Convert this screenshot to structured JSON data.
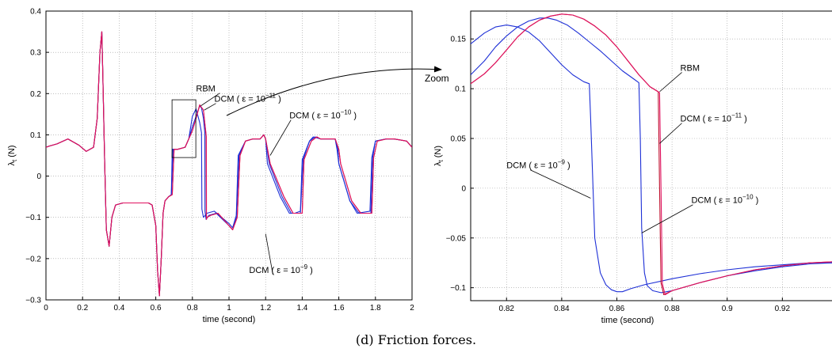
{
  "caption": "(d) Friction forces.",
  "zoom_label": "Zoom",
  "colors": {
    "rbm": "#e0115f",
    "dcm11": "#c0102e",
    "dcm10": "#1d2fd6",
    "dcm9": "#1d2fd6",
    "axis": "#000000",
    "grid": "#9a9a9a"
  },
  "chart_data": [
    {
      "type": "line",
      "xlabel": "time (second)",
      "ylabel": "λ",
      "ylabel_sub": "t",
      "ylabel_unit": " (N)",
      "xlim": [
        0,
        2
      ],
      "ylim": [
        -0.3,
        0.4
      ],
      "xticks": [
        0,
        0.2,
        0.4,
        0.6,
        0.8,
        1,
        1.2,
        1.4,
        1.6,
        1.8,
        2
      ],
      "xtick_labels": [
        "0",
        "0.2",
        "0.4",
        "0.6",
        "0.8",
        "1",
        "1.2",
        "1.4",
        "1.6",
        "1.8",
        "2"
      ],
      "yticks": [
        -0.3,
        -0.2,
        -0.1,
        0,
        0.1,
        0.2,
        0.3,
        0.4
      ],
      "ytick_labels": [
        "−0.3",
        "−0.2",
        "−0.1",
        "0",
        "0.1",
        "0.2",
        "0.3",
        "0.4"
      ],
      "grid": true,
      "series": [
        {
          "name": "DCM ( ε = 10^−9 )",
          "color": "#1d2fd6",
          "x": [
            0,
            0.02,
            0.06,
            0.12,
            0.18,
            0.22,
            0.26,
            0.28,
            0.295,
            0.305,
            0.31,
            0.32,
            0.33,
            0.345,
            0.36,
            0.38,
            0.42,
            0.5,
            0.56,
            0.58,
            0.6,
            0.61,
            0.62,
            0.63,
            0.64,
            0.65,
            0.67,
            0.685,
            0.69,
            0.71,
            0.72,
            0.76,
            0.78,
            0.8,
            0.82,
            0.84,
            0.85,
            0.852,
            0.86,
            0.88,
            0.92,
            1.0,
            1.02,
            1.04,
            1.05,
            1.09,
            1.13,
            1.17,
            1.18,
            1.19,
            1.2,
            1.21,
            1.28,
            1.33,
            1.36,
            1.39,
            1.4,
            1.44,
            1.46,
            1.5,
            1.58,
            1.59,
            1.6,
            1.66,
            1.7,
            1.77,
            1.78,
            1.8,
            1.86,
            1.9,
            1.97,
            2.0
          ],
          "y": [
            0.07,
            0.073,
            0.078,
            0.09,
            0.075,
            0.06,
            0.07,
            0.14,
            0.3,
            0.35,
            0.26,
            0.05,
            -0.13,
            -0.17,
            -0.1,
            -0.07,
            -0.065,
            -0.065,
            -0.065,
            -0.07,
            -0.12,
            -0.23,
            -0.29,
            -0.2,
            -0.09,
            -0.06,
            -0.05,
            -0.045,
            0.065,
            0.065,
            0.065,
            0.07,
            0.09,
            0.145,
            0.163,
            0.13,
            0.105,
            -0.08,
            -0.1,
            -0.09,
            -0.085,
            -0.115,
            -0.125,
            -0.095,
            0.05,
            0.085,
            0.09,
            0.09,
            0.095,
            0.1,
            0.09,
            0.03,
            -0.05,
            -0.09,
            -0.09,
            -0.085,
            0.04,
            0.085,
            0.095,
            0.09,
            0.09,
            0.065,
            0.03,
            -0.06,
            -0.09,
            -0.085,
            0.045,
            0.085,
            0.09,
            0.09,
            0.085,
            0.07
          ]
        },
        {
          "name": "DCM ( ε = 10^−10 )",
          "color": "#1d2fd6",
          "x": [
            0,
            0.02,
            0.06,
            0.12,
            0.18,
            0.22,
            0.26,
            0.28,
            0.295,
            0.305,
            0.31,
            0.32,
            0.33,
            0.345,
            0.36,
            0.38,
            0.42,
            0.5,
            0.56,
            0.58,
            0.6,
            0.61,
            0.62,
            0.63,
            0.64,
            0.65,
            0.67,
            0.685,
            0.695,
            0.71,
            0.72,
            0.76,
            0.78,
            0.8,
            0.82,
            0.84,
            0.85,
            0.86,
            0.868,
            0.869,
            0.875,
            0.89,
            0.93,
            1.0,
            1.02,
            1.04,
            1.055,
            1.09,
            1.13,
            1.17,
            1.18,
            1.19,
            1.2,
            1.22,
            1.29,
            1.34,
            1.37,
            1.39,
            1.405,
            1.44,
            1.47,
            1.5,
            1.58,
            1.595,
            1.6,
            1.66,
            1.71,
            1.775,
            1.785,
            1.8,
            1.86,
            1.9,
            1.97,
            2.0
          ],
          "y": [
            0.07,
            0.073,
            0.078,
            0.09,
            0.075,
            0.06,
            0.07,
            0.14,
            0.3,
            0.35,
            0.26,
            0.05,
            -0.13,
            -0.17,
            -0.1,
            -0.07,
            -0.065,
            -0.065,
            -0.065,
            -0.07,
            -0.12,
            -0.23,
            -0.29,
            -0.2,
            -0.09,
            -0.06,
            -0.05,
            -0.045,
            0.065,
            0.065,
            0.065,
            0.07,
            0.09,
            0.12,
            0.145,
            0.17,
            0.165,
            0.14,
            0.105,
            -0.085,
            -0.105,
            -0.095,
            -0.09,
            -0.12,
            -0.13,
            -0.1,
            0.05,
            0.085,
            0.09,
            0.09,
            0.095,
            0.1,
            0.09,
            0.03,
            -0.05,
            -0.09,
            -0.09,
            -0.09,
            0.04,
            0.085,
            0.095,
            0.09,
            0.09,
            0.065,
            0.03,
            -0.06,
            -0.09,
            -0.09,
            0.045,
            0.085,
            0.09,
            0.09,
            0.085,
            0.07
          ]
        },
        {
          "name": "DCM ( ε = 10^−11 )",
          "color": "#c0102e",
          "x": [
            0,
            0.02,
            0.06,
            0.12,
            0.18,
            0.22,
            0.26,
            0.28,
            0.295,
            0.305,
            0.31,
            0.32,
            0.33,
            0.345,
            0.36,
            0.38,
            0.42,
            0.5,
            0.56,
            0.58,
            0.6,
            0.61,
            0.62,
            0.63,
            0.64,
            0.65,
            0.67,
            0.69,
            0.7,
            0.71,
            0.72,
            0.76,
            0.78,
            0.8,
            0.82,
            0.84,
            0.86,
            0.875,
            0.876,
            0.88,
            0.9,
            0.94,
            1.0,
            1.02,
            1.045,
            1.06,
            1.09,
            1.13,
            1.17,
            1.18,
            1.19,
            1.2,
            1.225,
            1.3,
            1.35,
            1.38,
            1.4,
            1.41,
            1.45,
            1.48,
            1.5,
            1.58,
            1.6,
            1.61,
            1.67,
            1.72,
            1.78,
            1.79,
            1.81,
            1.86,
            1.9,
            1.97,
            2.0
          ],
          "y": [
            0.07,
            0.073,
            0.078,
            0.09,
            0.075,
            0.06,
            0.07,
            0.14,
            0.3,
            0.35,
            0.26,
            0.05,
            -0.13,
            -0.17,
            -0.1,
            -0.07,
            -0.065,
            -0.065,
            -0.065,
            -0.07,
            -0.12,
            -0.23,
            -0.29,
            -0.2,
            -0.09,
            -0.06,
            -0.05,
            -0.045,
            0.065,
            0.065,
            0.065,
            0.07,
            0.09,
            0.11,
            0.14,
            0.172,
            0.16,
            0.097,
            -0.1,
            -0.1,
            -0.095,
            -0.09,
            -0.12,
            -0.13,
            -0.1,
            0.05,
            0.085,
            0.09,
            0.09,
            0.095,
            0.1,
            0.09,
            0.03,
            -0.05,
            -0.09,
            -0.09,
            -0.09,
            0.04,
            0.085,
            0.095,
            0.09,
            0.09,
            0.065,
            0.03,
            -0.06,
            -0.09,
            -0.09,
            0.045,
            0.085,
            0.09,
            0.09,
            0.085,
            0.07
          ]
        },
        {
          "name": "RBM",
          "color": "#e0115f",
          "x": [
            0,
            0.02,
            0.06,
            0.12,
            0.18,
            0.22,
            0.26,
            0.28,
            0.295,
            0.305,
            0.31,
            0.32,
            0.33,
            0.345,
            0.36,
            0.38,
            0.42,
            0.5,
            0.56,
            0.58,
            0.6,
            0.61,
            0.62,
            0.63,
            0.64,
            0.65,
            0.67,
            0.69,
            0.7,
            0.71,
            0.72,
            0.76,
            0.78,
            0.8,
            0.82,
            0.84,
            0.86,
            0.876,
            0.877,
            0.88,
            0.9,
            0.94,
            1.0,
            1.02,
            1.045,
            1.06,
            1.09,
            1.13,
            1.17,
            1.18,
            1.19,
            1.2,
            1.225,
            1.3,
            1.35,
            1.38,
            1.4,
            1.41,
            1.45,
            1.48,
            1.5,
            1.58,
            1.6,
            1.61,
            1.67,
            1.72,
            1.78,
            1.79,
            1.81,
            1.86,
            1.9,
            1.97,
            2.0
          ],
          "y": [
            0.07,
            0.073,
            0.078,
            0.09,
            0.075,
            0.06,
            0.07,
            0.14,
            0.3,
            0.35,
            0.26,
            0.05,
            -0.13,
            -0.17,
            -0.1,
            -0.07,
            -0.065,
            -0.065,
            -0.065,
            -0.07,
            -0.12,
            -0.23,
            -0.29,
            -0.2,
            -0.09,
            -0.06,
            -0.05,
            -0.045,
            0.065,
            0.065,
            0.065,
            0.07,
            0.09,
            0.11,
            0.14,
            0.173,
            0.16,
            0.096,
            -0.105,
            -0.1,
            -0.095,
            -0.09,
            -0.12,
            -0.13,
            -0.1,
            0.05,
            0.085,
            0.09,
            0.09,
            0.095,
            0.1,
            0.09,
            0.03,
            -0.05,
            -0.09,
            -0.09,
            -0.09,
            0.04,
            0.085,
            0.095,
            0.09,
            0.09,
            0.065,
            0.03,
            -0.06,
            -0.09,
            -0.09,
            0.045,
            0.085,
            0.09,
            0.09,
            0.085,
            0.07
          ]
        }
      ],
      "annotations": [
        {
          "text": "RBM",
          "x": 0.82,
          "y": 0.205,
          "point": [
            0.845,
            0.17
          ]
        },
        {
          "text": "DCM ( ε = 10",
          "sup": "−11",
          "after": " )",
          "x": 0.92,
          "y": 0.18,
          "point": [
            0.865,
            0.16
          ]
        },
        {
          "text": "DCM ( ε = 10",
          "sup": "−10",
          "after": " )",
          "x": 1.33,
          "y": 0.14,
          "point": [
            1.225,
            0.05
          ]
        },
        {
          "text": "DCM ( ε = 10",
          "sup": "−9",
          "after": " )",
          "x": 1.11,
          "y": -0.235,
          "point": [
            1.2,
            -0.14
          ]
        }
      ],
      "zoom_box": {
        "x": [
          0.81,
          0.94
        ],
        "y": [
          0.045,
          0.185
        ]
      }
    },
    {
      "type": "line",
      "xlabel": "time (second)",
      "ylabel": "λ",
      "ylabel_sub": "t",
      "ylabel_unit": " (N)",
      "xlim": [
        0.807,
        0.938
      ],
      "ylim": [
        -0.113,
        0.178
      ],
      "xticks": [
        0.82,
        0.84,
        0.86,
        0.88,
        0.9,
        0.92
      ],
      "xtick_labels": [
        "0.82",
        "0.84",
        "0.86",
        "0.88",
        "0.9",
        "0.92"
      ],
      "yticks": [
        -0.1,
        -0.05,
        0,
        0.05,
        0.1,
        0.15
      ],
      "ytick_labels": [
        "−0.1",
        "−0.05",
        "0",
        "0.05",
        "0.1",
        "0.15"
      ],
      "grid": true,
      "series": [
        {
          "name": "DCM ( ε = 10^−9 )",
          "color": "#1d2fd6",
          "x": [
            0.807,
            0.812,
            0.816,
            0.82,
            0.824,
            0.828,
            0.832,
            0.836,
            0.84,
            0.844,
            0.848,
            0.85,
            0.8505,
            0.852,
            0.854,
            0.856,
            0.858,
            0.86,
            0.862,
            0.865,
            0.87,
            0.88,
            0.89,
            0.9,
            0.91,
            0.92,
            0.93,
            0.938
          ],
          "y": [
            0.145,
            0.156,
            0.162,
            0.164,
            0.162,
            0.157,
            0.148,
            0.136,
            0.124,
            0.114,
            0.107,
            0.105,
            0.07,
            -0.05,
            -0.085,
            -0.097,
            -0.102,
            -0.104,
            -0.104,
            -0.101,
            -0.097,
            -0.091,
            -0.086,
            -0.082,
            -0.079,
            -0.077,
            -0.075,
            -0.075
          ]
        },
        {
          "name": "DCM ( ε = 10^−10 )",
          "color": "#1d2fd6",
          "x": [
            0.807,
            0.812,
            0.816,
            0.82,
            0.824,
            0.828,
            0.832,
            0.835,
            0.838,
            0.842,
            0.846,
            0.85,
            0.854,
            0.858,
            0.862,
            0.866,
            0.868,
            0.8685,
            0.869,
            0.87,
            0.871,
            0.873,
            0.876,
            0.88,
            0.89,
            0.9,
            0.91,
            0.92,
            0.93,
            0.938
          ],
          "y": [
            0.114,
            0.128,
            0.142,
            0.153,
            0.162,
            0.168,
            0.171,
            0.171,
            0.169,
            0.164,
            0.156,
            0.147,
            0.138,
            0.128,
            0.118,
            0.11,
            0.106,
            0.05,
            -0.04,
            -0.085,
            -0.098,
            -0.103,
            -0.105,
            -0.103,
            -0.095,
            -0.088,
            -0.083,
            -0.079,
            -0.076,
            -0.075
          ]
        },
        {
          "name": "DCM ( ε = 10^−11 )",
          "color": "#c0102e",
          "x": [
            0.807,
            0.812,
            0.816,
            0.82,
            0.824,
            0.828,
            0.832,
            0.836,
            0.84,
            0.844,
            0.848,
            0.852,
            0.856,
            0.86,
            0.864,
            0.868,
            0.872,
            0.875,
            0.8755,
            0.876,
            0.877,
            0.88,
            0.89,
            0.9,
            0.91,
            0.92,
            0.93,
            0.938
          ],
          "y": [
            0.105,
            0.115,
            0.126,
            0.139,
            0.152,
            0.162,
            0.169,
            0.173,
            0.175,
            0.174,
            0.17,
            0.163,
            0.154,
            0.142,
            0.128,
            0.114,
            0.102,
            0.097,
            0.0,
            -0.095,
            -0.107,
            -0.103,
            -0.095,
            -0.088,
            -0.082,
            -0.078,
            -0.075,
            -0.074
          ]
        },
        {
          "name": "RBM",
          "color": "#e0115f",
          "x": [
            0.807,
            0.812,
            0.816,
            0.82,
            0.824,
            0.828,
            0.832,
            0.836,
            0.84,
            0.844,
            0.848,
            0.852,
            0.856,
            0.86,
            0.864,
            0.868,
            0.872,
            0.8755,
            0.876,
            0.8765,
            0.8775,
            0.88,
            0.89,
            0.9,
            0.91,
            0.92,
            0.93,
            0.938
          ],
          "y": [
            0.105,
            0.115,
            0.126,
            0.139,
            0.152,
            0.162,
            0.169,
            0.173,
            0.175,
            0.174,
            0.17,
            0.163,
            0.154,
            0.142,
            0.128,
            0.114,
            0.102,
            0.096,
            0.0,
            -0.096,
            -0.107,
            -0.103,
            -0.095,
            -0.088,
            -0.082,
            -0.078,
            -0.075,
            -0.074
          ]
        }
      ],
      "annotations": [
        {
          "text": "RBM",
          "x": 0.883,
          "y": 0.118,
          "point": [
            0.8755,
            0.097
          ]
        },
        {
          "text": "DCM ( ε = 10",
          "sup": "−11",
          "after": " )",
          "x": 0.883,
          "y": 0.067,
          "point": [
            0.8755,
            0.045
          ]
        },
        {
          "text": "DCM ( ε = 10",
          "sup": "−9",
          "after": " )",
          "x": 0.82,
          "y": 0.02,
          "point": [
            0.8505,
            -0.01
          ]
        },
        {
          "text": "DCM ( ε = 10",
          "sup": "−10",
          "after": " )",
          "x": 0.887,
          "y": -0.015,
          "point": [
            0.869,
            -0.045
          ]
        }
      ]
    }
  ]
}
